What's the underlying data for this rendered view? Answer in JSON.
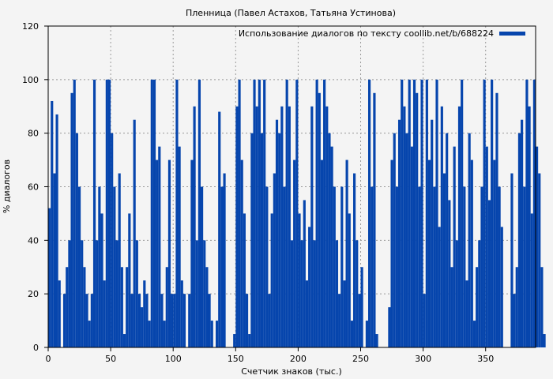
{
  "chart_data": {
    "type": "bar",
    "title": "Пленница (Павел Астахов, Татьяна Устинова)",
    "xlabel": "Счетчик знаков (тыс.)",
    "ylabel": "% диалогов",
    "legend": "Использование диалогов по тексту coollib.net/b/688224",
    "legend_position": "top-right",
    "xlim": [
      0,
      390
    ],
    "ylim": [
      0,
      120
    ],
    "xticks": [
      0,
      50,
      100,
      150,
      200,
      250,
      300,
      350
    ],
    "yticks": [
      0,
      20,
      40,
      60,
      80,
      100,
      120
    ],
    "grid": true,
    "bar_color": "#0645ad",
    "x_step": 2,
    "values": [
      52,
      92,
      65,
      87,
      25,
      0,
      20,
      30,
      40,
      95,
      100,
      80,
      60,
      40,
      30,
      20,
      10,
      20,
      100,
      40,
      60,
      50,
      25,
      100,
      100,
      80,
      60,
      40,
      65,
      30,
      5,
      30,
      50,
      20,
      85,
      40,
      20,
      15,
      25,
      20,
      10,
      100,
      100,
      70,
      75,
      20,
      10,
      30,
      70,
      20,
      20,
      100,
      75,
      25,
      20,
      0,
      20,
      70,
      90,
      40,
      100,
      60,
      40,
      30,
      20,
      10,
      0,
      10,
      88,
      60,
      65,
      0,
      0,
      0,
      5,
      90,
      100,
      70,
      50,
      20,
      5,
      80,
      100,
      90,
      100,
      80,
      100,
      60,
      20,
      50,
      65,
      85,
      80,
      90,
      60,
      100,
      90,
      40,
      70,
      100,
      50,
      40,
      55,
      25,
      45,
      90,
      40,
      100,
      95,
      70,
      100,
      90,
      80,
      75,
      60,
      40,
      20,
      60,
      25,
      70,
      50,
      10,
      65,
      40,
      20,
      30,
      0,
      10,
      100,
      60,
      95,
      5,
      0,
      0,
      0,
      0,
      15,
      70,
      80,
      60,
      85,
      100,
      90,
      80,
      100,
      75,
      100,
      95,
      60,
      100,
      20,
      100,
      70,
      85,
      60,
      100,
      45,
      90,
      65,
      80,
      55,
      30,
      75,
      40,
      90,
      100,
      60,
      25,
      80,
      70,
      10,
      30,
      40,
      60,
      100,
      75,
      55,
      100,
      70,
      95,
      60,
      45,
      0,
      0,
      0,
      65,
      20,
      30,
      80,
      85,
      60,
      100,
      90,
      50,
      100,
      75,
      65,
      30,
      5
    ]
  }
}
